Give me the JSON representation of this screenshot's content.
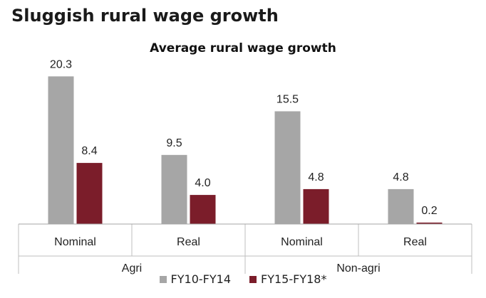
{
  "page": {
    "title": "Sluggish rural wage growth"
  },
  "chart_data": {
    "type": "bar",
    "title": "Average rural wage growth",
    "categories": [
      "Nominal",
      "Real",
      "Nominal",
      "Real"
    ],
    "groups": [
      {
        "label": "Agri",
        "categories": [
          "Nominal",
          "Real"
        ]
      },
      {
        "label": "Non-agri",
        "categories": [
          "Nominal",
          "Real"
        ]
      }
    ],
    "series": [
      {
        "name": "FY10-FY14",
        "color": "#a6a6a6",
        "values": [
          20.3,
          9.5,
          15.5,
          4.8
        ],
        "labels": [
          "20.3",
          "9.5",
          "15.5",
          "4.8"
        ]
      },
      {
        "name": "FY15-FY18*",
        "color": "#7b1d2a",
        "values": [
          8.4,
          4.0,
          4.8,
          0.2
        ],
        "labels": [
          "8.4",
          "4.0",
          "4.8",
          "0.2"
        ]
      }
    ],
    "ylim": [
      0,
      22
    ],
    "grid": false,
    "legend_position": "bottom"
  }
}
